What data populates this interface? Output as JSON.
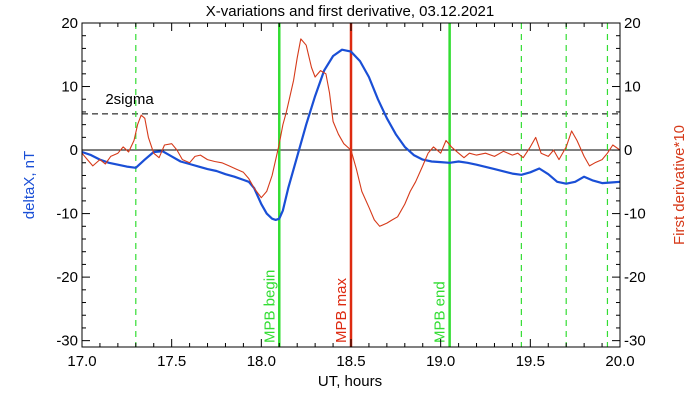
{
  "chart_data": {
    "type": "line",
    "title": "X-variations and first derivative, 03.12.2021",
    "xlabel": "UT, hours",
    "ylabel_left": "deltaX, nT",
    "ylabel_right": "First derivative*10",
    "xlim": [
      17.0,
      20.0
    ],
    "ylim": [
      -31,
      20
    ],
    "x_ticks": [
      "17.0",
      "17.5",
      "18.0",
      "18.5",
      "19.0",
      "19.5",
      "20.0"
    ],
    "y_ticks": [
      "20",
      "10",
      "0",
      "-10",
      "-20",
      "-30"
    ],
    "y_tick_values": [
      20,
      10,
      0,
      -10,
      -20,
      -30
    ],
    "x_tick_values": [
      17.0,
      17.5,
      18.0,
      18.5,
      19.0,
      19.5,
      20.0
    ],
    "grid": false,
    "zero_line": 0,
    "threshold": {
      "label": "2sigma",
      "value": 5.7,
      "color": "#000000"
    },
    "vertical_markers": [
      {
        "label": "MPB begin",
        "x": 18.1,
        "color": "#33dd33"
      },
      {
        "label": "MPB max",
        "x": 18.5,
        "color": "#dd2a10"
      },
      {
        "label": "MPB end",
        "x": 19.05,
        "color": "#33dd33"
      }
    ],
    "dashed_markers": {
      "x": [
        17.3,
        19.45,
        19.7,
        19.93
      ],
      "color": "#33dd33"
    },
    "series": [
      {
        "name": "deltaX",
        "axis": "left",
        "color": "#1a4fd6",
        "x": [
          17.0,
          17.05,
          17.1,
          17.15,
          17.2,
          17.25,
          17.3,
          17.35,
          17.4,
          17.45,
          17.5,
          17.55,
          17.6,
          17.65,
          17.7,
          17.75,
          17.8,
          17.85,
          17.9,
          17.93,
          17.96,
          18.0,
          18.03,
          18.06,
          18.08,
          18.1,
          18.12,
          18.15,
          18.2,
          18.25,
          18.3,
          18.35,
          18.4,
          18.45,
          18.5,
          18.55,
          18.6,
          18.65,
          18.7,
          18.75,
          18.8,
          18.85,
          18.9,
          18.95,
          19.0,
          19.05,
          19.1,
          19.15,
          19.2,
          19.3,
          19.4,
          19.45,
          19.5,
          19.55,
          19.6,
          19.65,
          19.7,
          19.75,
          19.8,
          19.85,
          19.9,
          19.95,
          20.0
        ],
        "y": [
          -0.3,
          -0.8,
          -1.5,
          -2.0,
          -2.3,
          -2.6,
          -2.8,
          -1.5,
          -0.3,
          -0.2,
          -1.0,
          -1.8,
          -2.2,
          -2.6,
          -3.0,
          -3.3,
          -3.8,
          -4.2,
          -4.7,
          -5.0,
          -6.0,
          -8.5,
          -10.0,
          -10.8,
          -11.0,
          -10.8,
          -9.5,
          -6.0,
          -1.0,
          4.0,
          8.5,
          12.5,
          14.8,
          15.8,
          15.5,
          14.0,
          11.5,
          8.0,
          5.0,
          2.5,
          0.5,
          -0.8,
          -1.5,
          -1.8,
          -1.9,
          -2.0,
          -1.8,
          -2.0,
          -2.3,
          -3.0,
          -3.7,
          -3.9,
          -3.5,
          -2.9,
          -3.8,
          -5.0,
          -5.3,
          -5.0,
          -4.2,
          -4.8,
          -5.2,
          -5.1,
          -5.0
        ]
      },
      {
        "name": "First derivative*10",
        "axis": "right",
        "color": "#d63a1a",
        "x": [
          17.0,
          17.03,
          17.06,
          17.1,
          17.13,
          17.16,
          17.2,
          17.23,
          17.26,
          17.29,
          17.31,
          17.33,
          17.35,
          17.37,
          17.4,
          17.43,
          17.46,
          17.5,
          17.53,
          17.56,
          17.6,
          17.63,
          17.66,
          17.7,
          17.74,
          17.78,
          17.82,
          17.86,
          17.9,
          17.93,
          17.96,
          18.0,
          18.03,
          18.06,
          18.08,
          18.1,
          18.12,
          18.14,
          18.16,
          18.18,
          18.2,
          18.22,
          18.25,
          18.28,
          18.3,
          18.33,
          18.36,
          18.38,
          18.4,
          18.43,
          18.46,
          18.5,
          18.53,
          18.56,
          18.6,
          18.63,
          18.66,
          18.7,
          18.73,
          18.76,
          18.8,
          18.83,
          18.86,
          18.9,
          18.93,
          18.96,
          19.0,
          19.03,
          19.06,
          19.1,
          19.13,
          19.16,
          19.2,
          19.25,
          19.3,
          19.35,
          19.4,
          19.43,
          19.46,
          19.5,
          19.53,
          19.56,
          19.6,
          19.63,
          19.66,
          19.7,
          19.73,
          19.76,
          19.8,
          19.83,
          19.86,
          19.9,
          19.93,
          19.96,
          20.0
        ],
        "y": [
          -0.5,
          -1.5,
          -2.5,
          -1.5,
          -2.2,
          -1.0,
          -0.5,
          0.5,
          -0.3,
          1.5,
          4.0,
          5.5,
          5.0,
          2.0,
          -0.5,
          -1.2,
          0.8,
          1.0,
          0.0,
          -1.5,
          -2.0,
          -1.0,
          -0.8,
          -1.5,
          -1.8,
          -2.0,
          -2.5,
          -3.0,
          -3.5,
          -4.5,
          -6.0,
          -7.5,
          -6.5,
          -4.0,
          -1.5,
          1.0,
          4.0,
          6.0,
          8.5,
          11.0,
          14.5,
          17.5,
          16.5,
          13.0,
          11.5,
          12.5,
          12.0,
          9.0,
          4.5,
          2.5,
          1.0,
          0.0,
          -3.0,
          -6.5,
          -9.0,
          -11.0,
          -12.0,
          -11.5,
          -11.0,
          -10.5,
          -8.5,
          -6.5,
          -5.0,
          -2.5,
          -0.5,
          0.5,
          -0.5,
          1.5,
          0.5,
          -0.5,
          -1.2,
          -0.5,
          -0.8,
          -0.5,
          -1.0,
          -0.2,
          -0.8,
          -0.5,
          -1.2,
          0.5,
          2.0,
          -0.5,
          -1.0,
          0.0,
          -1.5,
          0.5,
          3.0,
          1.5,
          -1.0,
          -2.5,
          -2.0,
          -1.5,
          -0.5,
          0.8,
          0.0
        ]
      }
    ]
  }
}
